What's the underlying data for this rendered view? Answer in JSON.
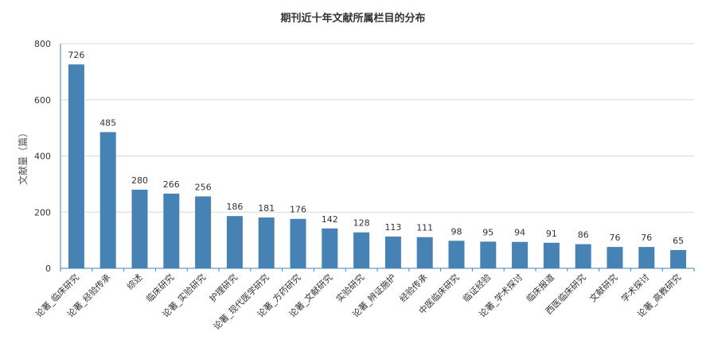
{
  "chart_data": {
    "type": "bar",
    "title": "期刊近十年文献所属栏目的分布",
    "xlabel": "",
    "ylabel": "文献量（篇）",
    "ylim": [
      0,
      800
    ],
    "yticks": [
      0,
      200,
      400,
      600,
      800
    ],
    "grid": true,
    "legend": "none",
    "categories": [
      "论著_临床研究",
      "论著_经验传承",
      "综述",
      "临床研究",
      "论著_实验研究",
      "护理研究",
      "论著_现代医学研究",
      "论著_方药研究",
      "论著_文献研究",
      "实验研究",
      "论著_辨证施护",
      "经验传承",
      "中医临床研究",
      "临证经验",
      "论著_学术探讨",
      "临床报道",
      "西医临床研究",
      "文献研究",
      "学术探讨",
      "论著_高教研究"
    ],
    "values": [
      726,
      485,
      280,
      266,
      256,
      186,
      181,
      176,
      142,
      128,
      113,
      111,
      98,
      95,
      94,
      91,
      86,
      76,
      76,
      65
    ],
    "bar_color": "#4682b4"
  }
}
